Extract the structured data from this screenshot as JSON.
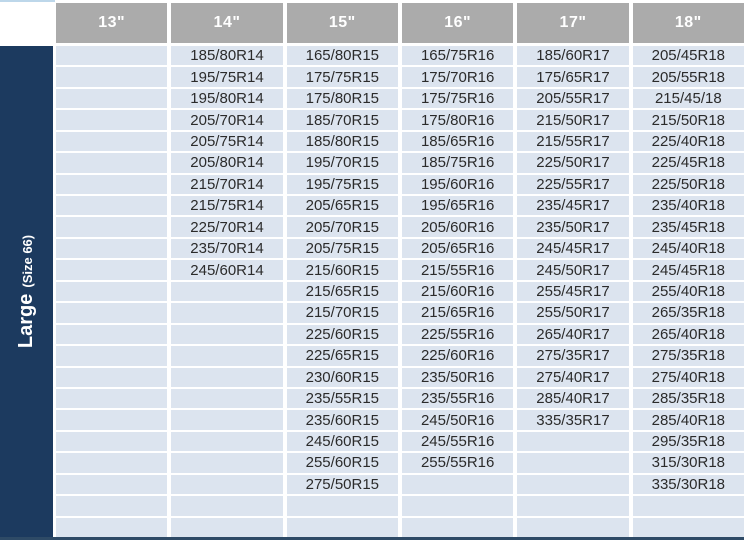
{
  "colors": {
    "header_bg": "#ABABAB",
    "row_bg": "#DCE4EF",
    "sidebar_bg": "#1C3A5F",
    "cell_text": "#2B2B2B",
    "top_accent": "#BDD7EA",
    "bottom_line": "#2E4A66"
  },
  "sidebar": {
    "label": "Large",
    "sublabel": "(Size 66)"
  },
  "size_chart": {
    "row_count": 23,
    "columns": [
      {
        "header": "13\"",
        "values": []
      },
      {
        "header": "14\"",
        "values": [
          "185/80R14",
          "195/75R14",
          "195/80R14",
          "205/70R14",
          "205/75R14",
          "205/80R14",
          "215/70R14",
          "215/75R14",
          "225/70R14",
          "235/70R14",
          "245/60R14"
        ]
      },
      {
        "header": "15\"",
        "values": [
          "165/80R15",
          "175/75R15",
          "175/80R15",
          "185/70R15",
          "185/80R15",
          "195/70R15",
          "195/75R15",
          "205/65R15",
          "205/70R15",
          "205/75R15",
          "215/60R15",
          "215/65R15",
          "215/70R15",
          "225/60R15",
          "225/65R15",
          "230/60R15",
          "235/55R15",
          "235/60R15",
          "245/60R15",
          "255/60R15",
          "275/50R15"
        ]
      },
      {
        "header": "16\"",
        "values": [
          "165/75R16",
          "175/70R16",
          "175/75R16",
          "175/80R16",
          "185/65R16",
          "185/75R16",
          "195/60R16",
          "195/65R16",
          "205/60R16",
          "205/65R16",
          "215/55R16",
          "215/60R16",
          "215/65R16",
          "225/55R16",
          "225/60R16",
          "235/50R16",
          "235/55R16",
          "245/50R16",
          "245/55R16",
          "255/55R16"
        ]
      },
      {
        "header": "17\"",
        "values": [
          "185/60R17",
          "175/65R17",
          "205/55R17",
          "215/50R17",
          "215/55R17",
          "225/50R17",
          "225/55R17",
          "235/45R17",
          "235/50R17",
          "245/45R17",
          "245/50R17",
          "255/45R17",
          "255/50R17",
          "265/40R17",
          "275/35R17",
          "275/40R17",
          "285/40R17",
          "335/35R17"
        ]
      },
      {
        "header": "18\"",
        "values": [
          "205/45R18",
          "205/55R18",
          "215/45/18",
          "215/50R18",
          "225/40R18",
          "225/45R18",
          "225/50R18",
          "235/40R18",
          "235/45R18",
          "245/40R18",
          "245/45R18",
          "255/40R18",
          "265/35R18",
          "265/40R18",
          "275/35R18",
          "275/40R18",
          "285/35R18",
          "285/40R18",
          "295/35R18",
          "315/30R18",
          "335/30R18"
        ]
      }
    ]
  }
}
